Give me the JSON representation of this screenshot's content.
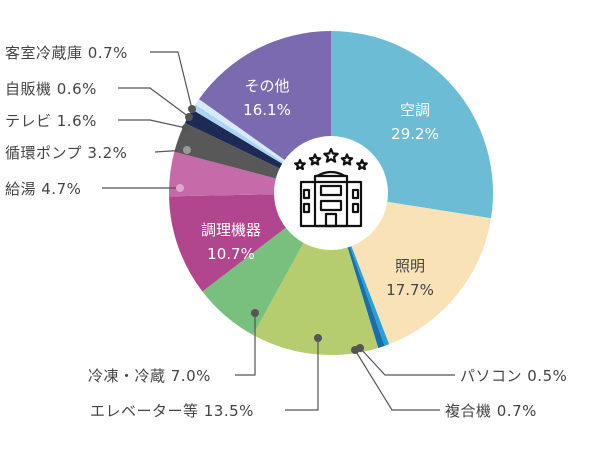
{
  "chart_data": {
    "type": "donut",
    "unit": "%",
    "slices": [
      {
        "name": "空調",
        "value": 29.2,
        "color": "#6cbcd5",
        "label": "inside"
      },
      {
        "name": "照明",
        "value": 17.7,
        "color": "#fae2b8",
        "label": "inside"
      },
      {
        "name": "パソコン",
        "value": 0.5,
        "color": "#2aa0d8",
        "label": "outside"
      },
      {
        "name": "複合機",
        "value": 0.7,
        "color": "#1b6ea8",
        "label": "outside"
      },
      {
        "name": "エレベーター等",
        "value": 13.5,
        "color": "#b6cd6f",
        "label": "outside"
      },
      {
        "name": "冷凍・冷蔵",
        "value": 7.0,
        "color": "#79bf7d",
        "label": "outside"
      },
      {
        "name": "調理機器",
        "value": 10.7,
        "color": "#b1468f",
        "label": "inside"
      },
      {
        "name": "給湯",
        "value": 4.7,
        "color": "#c56ba9",
        "label": "outside"
      },
      {
        "name": "循環ポンプ",
        "value": 3.2,
        "color": "#585858",
        "label": "outside"
      },
      {
        "name": "テレビ",
        "value": 1.6,
        "color": "#1c2a55",
        "label": "outside"
      },
      {
        "name": "自販機",
        "value": 0.6,
        "color": "#a9d5f1",
        "label": "outside"
      },
      {
        "name": "客室冷蔵庫",
        "value": 0.7,
        "color": "#d8eaf6",
        "label": "outside"
      },
      {
        "name": "その他",
        "value": 16.1,
        "color": "#7c6ab0",
        "label": "inside"
      }
    ],
    "display": {
      "aircon": "空調",
      "aircon_v": "29.2%",
      "lighting": "照明",
      "lighting_v": "17.7%",
      "cooking": "調理機器",
      "cooking_v": "10.7%",
      "other": "その他",
      "other_v": "16.1%",
      "pc": "パソコン 0.5%",
      "mfp": "複合機 0.7%",
      "elevator": "エレベーター等 13.5%",
      "freezer": "冷凍・冷蔵 7.0%",
      "hotwater": "給湯 4.7%",
      "pump": "循環ポンプ 3.2%",
      "tv": "テレビ 1.6%",
      "vending": "自販機 0.6%",
      "minibar": "客室冷蔵庫 0.7%"
    },
    "center_icon": "hotel-five-star-icon"
  }
}
